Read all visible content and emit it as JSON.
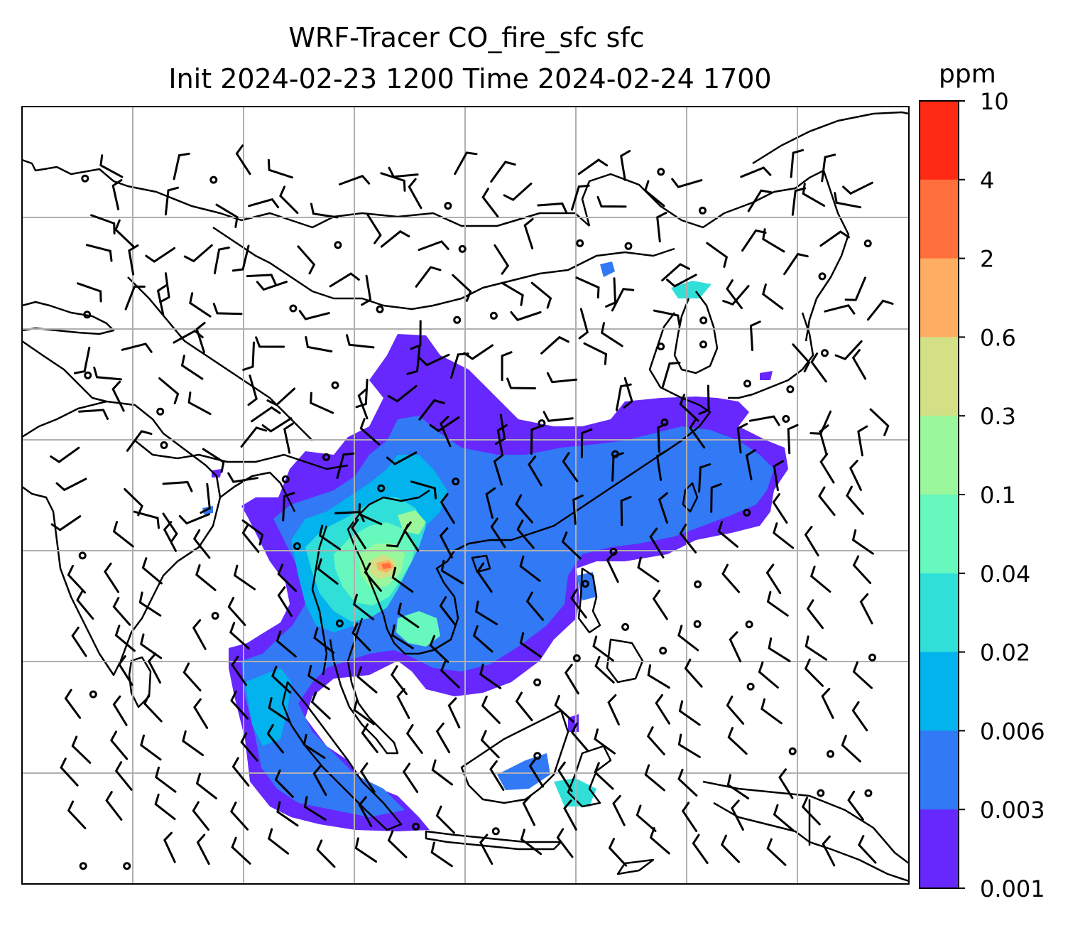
{
  "title": {
    "line1": "WRF-Tracer CO_fire_sfc sfc",
    "line2": "Init 2024-02-23 1200 Time 2024-02-24 1700"
  },
  "colorbar": {
    "unit": "ppm",
    "levels": [
      {
        "label": "10",
        "color": "#ff2a14"
      },
      {
        "label": "4",
        "color": "#ff6f3c"
      },
      {
        "label": "2",
        "color": "#feae62"
      },
      {
        "label": "0.6",
        "color": "#d3e085"
      },
      {
        "label": "0.3",
        "color": "#9bf79b"
      },
      {
        "label": "0.1",
        "color": "#66f8bd"
      },
      {
        "label": "0.04",
        "color": "#30dfd8"
      },
      {
        "label": "0.02",
        "color": "#03b3ed"
      },
      {
        "label": "0.006",
        "color": "#3179f5"
      },
      {
        "label": "0.003",
        "color": "#6628fd"
      },
      {
        "label": "0.001",
        "color": ""
      }
    ]
  },
  "map": {
    "background": "#ffffff",
    "gridline_color": "#b0b0b0",
    "coastline_color": "#000000",
    "grid_columns": 8,
    "grid_rows": 7,
    "wind_barb_color": "#000000"
  }
}
